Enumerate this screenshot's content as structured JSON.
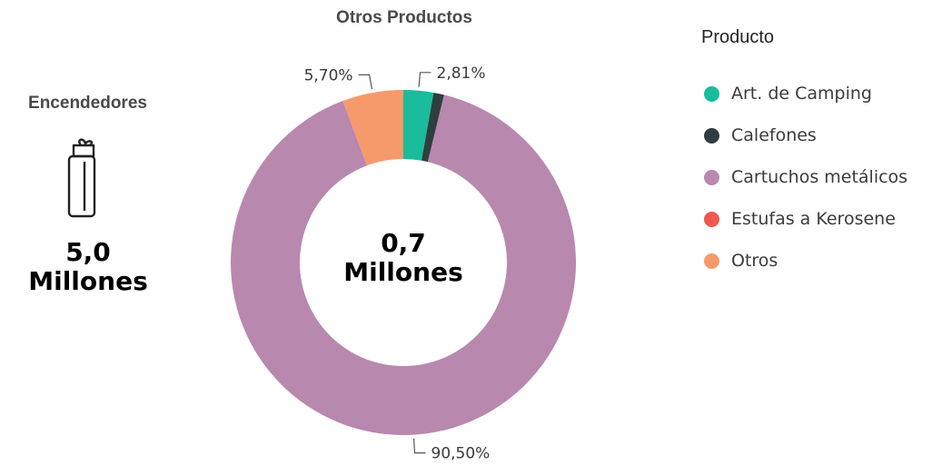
{
  "kpi": {
    "title": "Encendedores",
    "value_line1": "5,0",
    "value_line2": "Millones",
    "icon": "lighter-icon"
  },
  "chart": {
    "title": "Otros Productos",
    "center_line1": "0,7",
    "center_line2": "Millones"
  },
  "legend": {
    "title": "Producto",
    "items": [
      {
        "label": "Art. de Camping",
        "color": "#1abc9c"
      },
      {
        "label": "Calefones",
        "color": "#2f3e3e"
      },
      {
        "label": "Cartuchos metálicos",
        "color": "#b888ae"
      },
      {
        "label": "Estufas a Kerosene",
        "color": "#f0574f"
      },
      {
        "label": "Otros",
        "color": "#f79a6b"
      }
    ]
  },
  "chart_data": {
    "type": "pie",
    "title": "Otros Productos",
    "categories": [
      "Art. de Camping",
      "Calefones",
      "Cartuchos metálicos",
      "Estufas a Kerosene",
      "Otros"
    ],
    "values": [
      2.81,
      0.99,
      90.5,
      0.0,
      5.7
    ],
    "colors": [
      "#1abc9c",
      "#2f3e3e",
      "#b888ae",
      "#f0574f",
      "#f79a6b"
    ],
    "data_labels": [
      "2,81%",
      "",
      "90,50%",
      "",
      "5,70%"
    ],
    "legend_position": "right",
    "donut": true
  }
}
